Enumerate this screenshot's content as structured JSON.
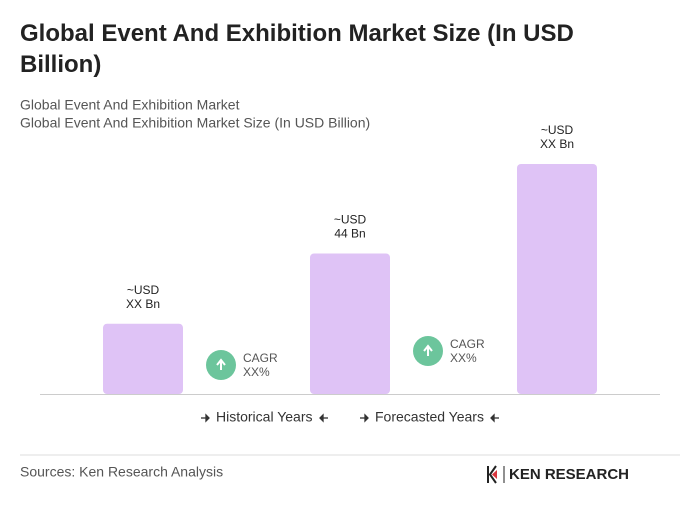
{
  "chart_data": {
    "type": "bar",
    "title": "Global Event And Exhibition Market Size (In USD Billion)",
    "subtitle": [
      "Global Event And Exhibition Market",
      "Global Event And Exhibition Market Size (In USD Billion)"
    ],
    "categories": [
      null,
      null,
      null
    ],
    "values": [
      22,
      44,
      72
    ],
    "value_labels": [
      [
        "~USD",
        "XX Bn"
      ],
      [
        "~USD",
        "44 Bn"
      ],
      [
        "~USD",
        "XX Bn"
      ]
    ],
    "color": "#dfc3f6",
    "annotations": [
      [
        "CAGR",
        "XX%"
      ],
      [
        "CAGR",
        "XX%"
      ]
    ],
    "period_labels": [
      "Historical Years",
      "Forecasted Years"
    ],
    "source": "Sources: Ken Research Analysis",
    "logo": "KEN RESEARCH"
  }
}
